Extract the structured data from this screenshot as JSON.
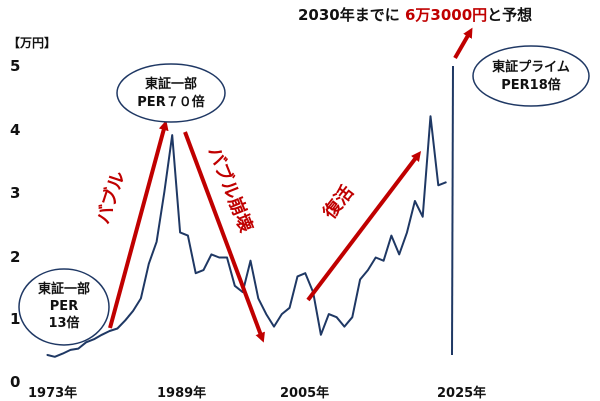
{
  "chart_data": {
    "type": "line",
    "title": "2030年までに 6万3000円と予想",
    "title_parts": [
      "2030年までに ",
      "6万3000円",
      "と予想"
    ],
    "ylabel": "【万円】",
    "yticks": [
      "0",
      "1",
      "2",
      "3",
      "4",
      "5"
    ],
    "ylim": [
      0,
      5
    ],
    "xticks": [
      "1973年",
      "1989年",
      "2005年",
      "2025年"
    ],
    "xlim": [
      1973,
      2025
    ],
    "grid": false,
    "line_color": "#1f3864",
    "accent_color": "#c00000",
    "series": [
      {
        "x": [
          1973,
          1974,
          1975,
          1976,
          1977,
          1978,
          1979,
          1980,
          1981,
          1982,
          1983,
          1984,
          1985,
          1986,
          1987,
          1988,
          1989,
          1990,
          1991,
          1992,
          1993,
          1994,
          1995,
          1996,
          1997,
          1998,
          1999,
          2000,
          2001,
          2002,
          2003,
          2004,
          2005,
          2006,
          2007,
          2008,
          2009,
          2010,
          2011,
          2012,
          2013,
          2014,
          2015,
          2016,
          2017,
          2018,
          2019,
          2020,
          2021,
          2022,
          2023,
          2024
        ],
        "values": [
          0.4,
          0.37,
          0.42,
          0.48,
          0.5,
          0.6,
          0.65,
          0.72,
          0.78,
          0.82,
          0.95,
          1.1,
          1.3,
          1.85,
          2.2,
          3.0,
          3.9,
          2.35,
          2.3,
          1.7,
          1.75,
          2.0,
          1.95,
          1.95,
          1.5,
          1.4,
          1.9,
          1.3,
          1.05,
          0.85,
          1.05,
          1.15,
          1.65,
          1.7,
          1.4,
          0.72,
          1.05,
          1.0,
          0.85,
          1.0,
          1.6,
          1.75,
          1.95,
          1.9,
          2.3,
          2.0,
          2.35,
          2.85,
          2.6,
          4.2,
          3.1,
          3.15
        ]
      }
    ],
    "annotations": [
      {
        "label": "東証一部\nPER\n13倍"
      },
      {
        "label": "東証一部\nPER７０倍"
      },
      {
        "label": "東証プライム\nPER18倍"
      }
    ],
    "arrow_labels": [
      "バブル",
      "バブル崩壊",
      "復活"
    ]
  }
}
